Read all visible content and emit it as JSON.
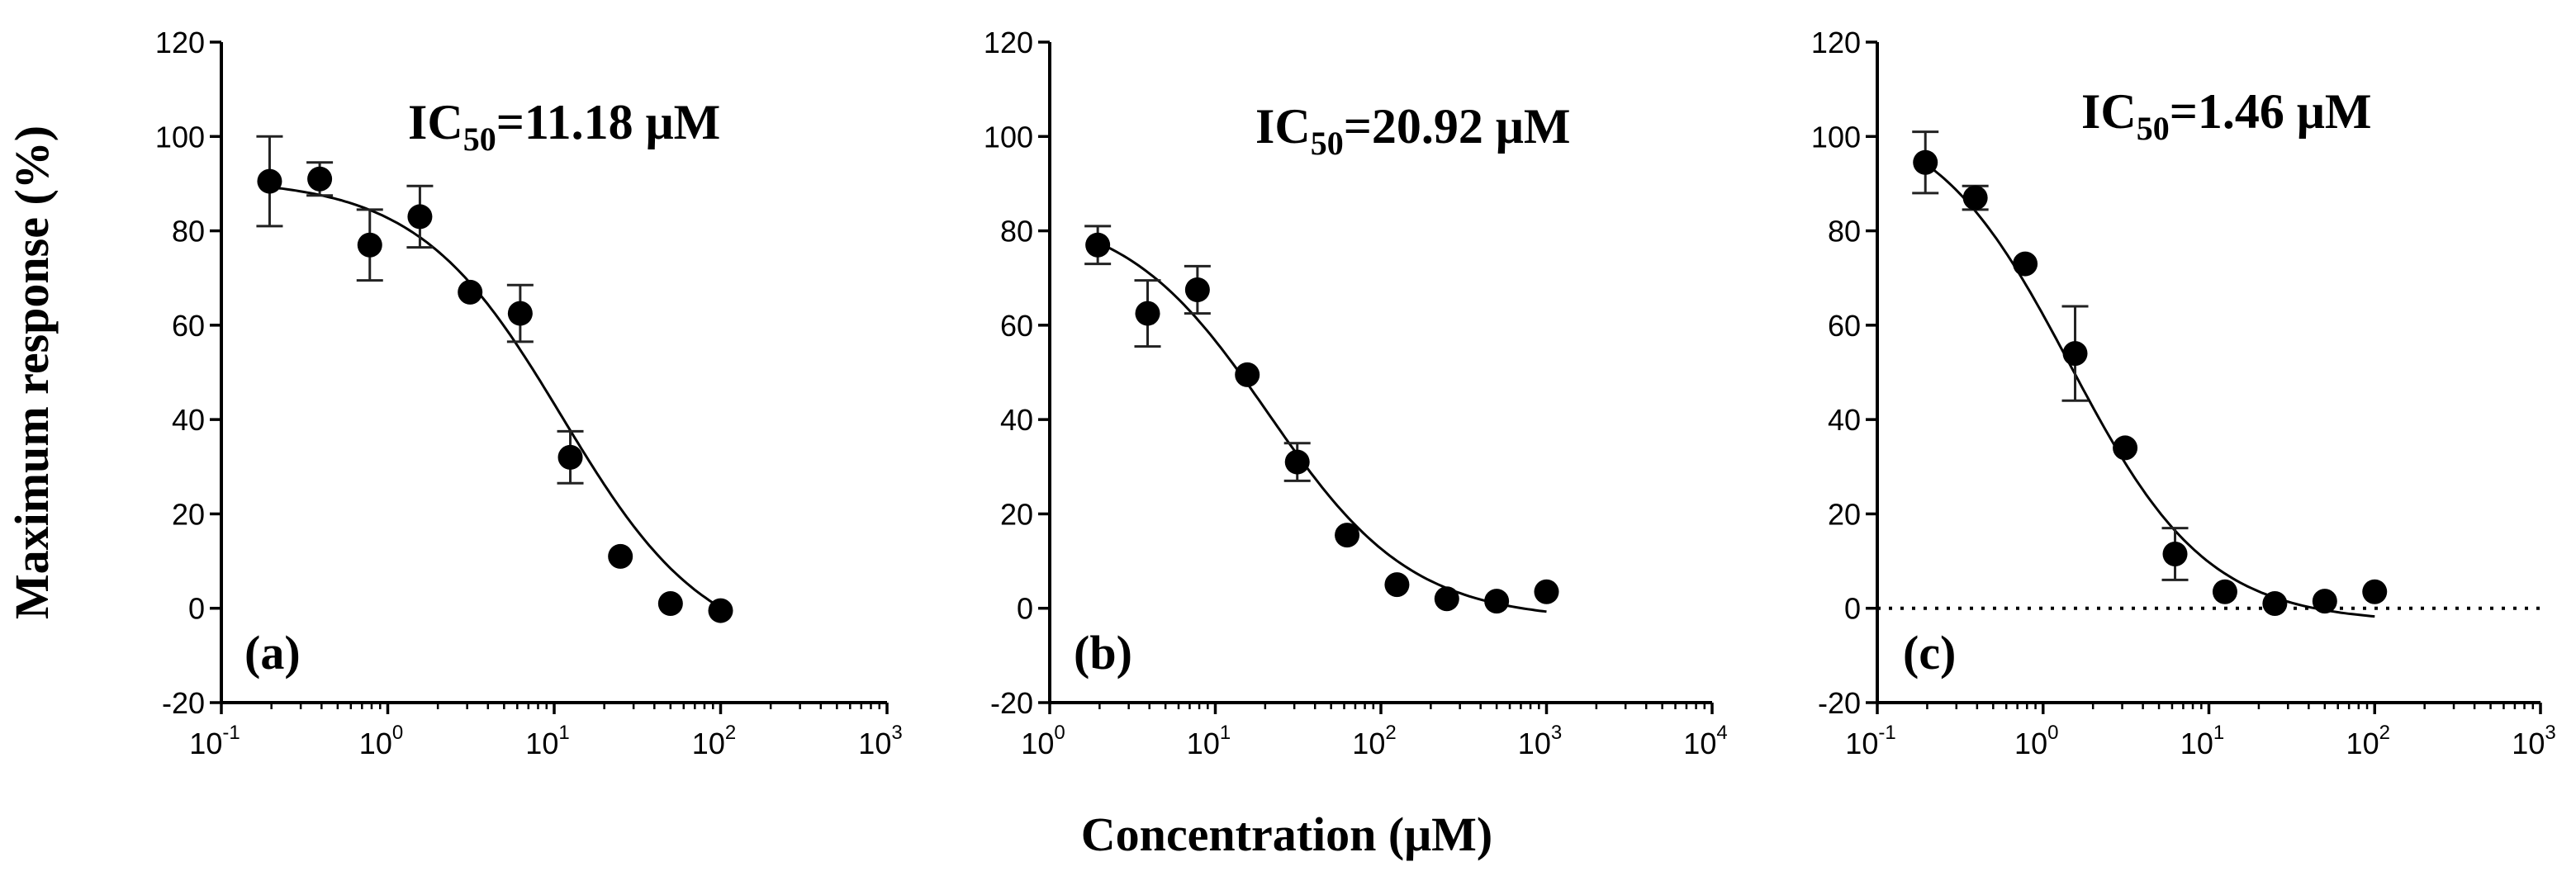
{
  "figure": {
    "ylabel": "Maximum response (%)",
    "xlabel": "Concentration (μM)"
  },
  "chart_data": [
    {
      "type": "scatter",
      "panel_label": "(a)",
      "annotation": {
        "main": "IC",
        "sub": "50",
        "value": "=11.18 μM"
      },
      "x_scale": "log",
      "xlim": [
        0.1,
        1000
      ],
      "x_tick_exponents": [
        "-1",
        "0",
        "1",
        "2",
        "3"
      ],
      "ylim": [
        -20,
        120
      ],
      "y_ticks": [
        "-20",
        "0",
        "20",
        "40",
        "60",
        "80",
        "100",
        "120"
      ],
      "zero_line": false,
      "x": [
        0.195,
        0.39,
        0.78,
        1.56,
        3.125,
        6.25,
        12.5,
        25,
        50,
        100
      ],
      "y": [
        90.5,
        91,
        77,
        83,
        67,
        62.5,
        32,
        11,
        1,
        -0.5
      ],
      "err": [
        9.5,
        3.5,
        7.5,
        6.5,
        0,
        6,
        5.5,
        0,
        0,
        0
      ],
      "fit": {
        "top": 91,
        "bottom": -10,
        "ic50": 11.18,
        "hill": 1.0,
        "x_range": [
          0.195,
          100
        ]
      }
    },
    {
      "type": "scatter",
      "panel_label": "(b)",
      "annotation": {
        "main": "IC",
        "sub": "50",
        "value": "=20.92 μM"
      },
      "x_scale": "log",
      "xlim": [
        1,
        10000
      ],
      "x_tick_exponents": [
        "0",
        "1",
        "2",
        "3",
        "4"
      ],
      "ylim": [
        -20,
        120
      ],
      "y_ticks": [
        "-20",
        "0",
        "20",
        "40",
        "60",
        "80",
        "100",
        "120"
      ],
      "zero_line": false,
      "x": [
        1.95,
        3.9,
        7.8,
        15.6,
        31.25,
        62.5,
        125,
        250,
        500,
        1000
      ],
      "y": [
        77,
        62.5,
        67.5,
        49.5,
        31,
        15.5,
        5,
        2,
        1.5,
        3.5
      ],
      "err": [
        4,
        7,
        5,
        0,
        4,
        0,
        0,
        0,
        0,
        0
      ],
      "fit": {
        "top": 85,
        "bottom": -2.5,
        "ic50": 20.92,
        "hill": 1.0,
        "x_range": [
          1.95,
          1000
        ]
      }
    },
    {
      "type": "scatter",
      "panel_label": "(c)",
      "annotation": {
        "main": "IC",
        "sub": "50",
        "value": "=1.46 μM"
      },
      "x_scale": "log",
      "xlim": [
        0.1,
        1000
      ],
      "x_tick_exponents": [
        "-1",
        "0",
        "1",
        "2",
        "3"
      ],
      "ylim": [
        -20,
        120
      ],
      "y_ticks": [
        "-20",
        "0",
        "20",
        "40",
        "60",
        "80",
        "100",
        "120"
      ],
      "zero_line": true,
      "x": [
        0.195,
        0.39,
        0.78,
        1.56,
        3.125,
        6.25,
        12.5,
        25,
        50,
        100
      ],
      "y": [
        94.5,
        87,
        73,
        54,
        34,
        11.5,
        3.5,
        1,
        1.5,
        3.5
      ],
      "err": [
        6.5,
        2.5,
        0,
        10,
        0,
        5.5,
        0,
        0,
        0,
        0
      ],
      "fit": {
        "top": 106,
        "bottom": -3,
        "ic50": 1.46,
        "hill": 1.05,
        "x_range": [
          0.195,
          100
        ]
      }
    }
  ]
}
